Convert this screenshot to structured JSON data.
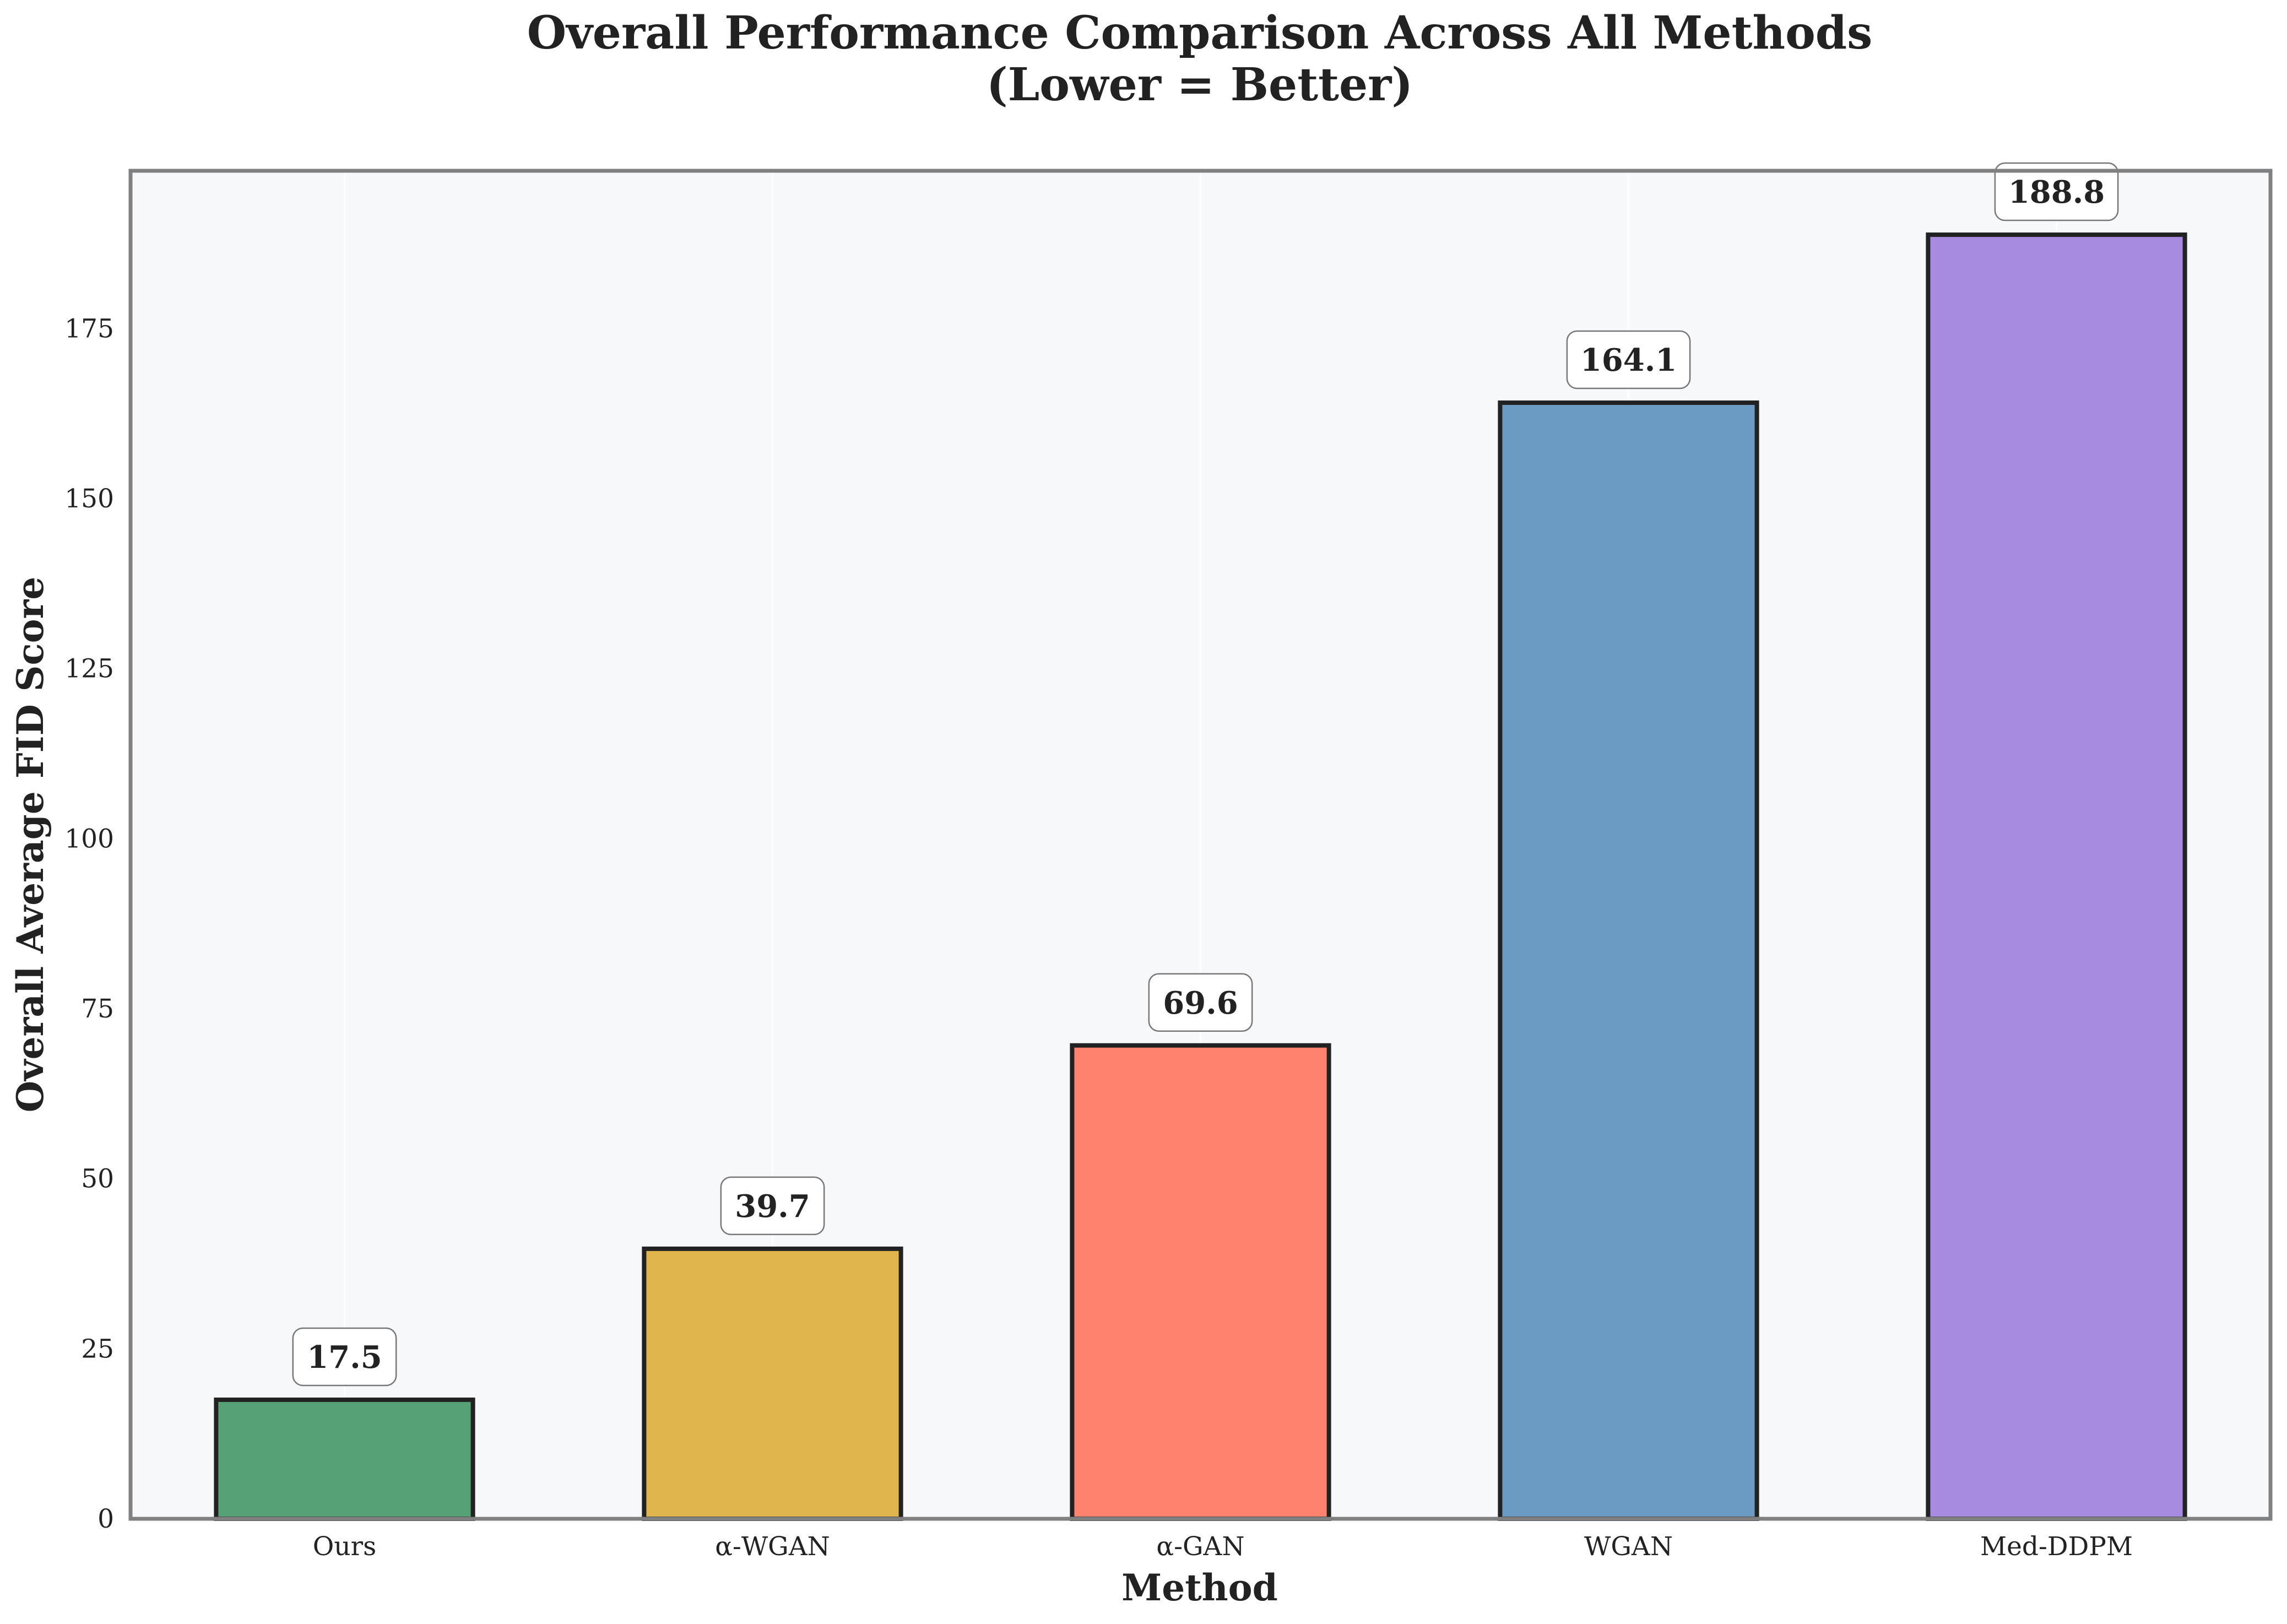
{
  "chart_data": {
    "type": "bar",
    "title": "Overall Performance Comparison Across All Methods",
    "subtitle": "(Lower = Better)",
    "xlabel": "Method",
    "ylabel": "Overall Average FID Score",
    "categories": [
      "Ours",
      "α-WGAN",
      "α-GAN",
      "WGAN",
      "Med-DDPM"
    ],
    "values": [
      17.5,
      39.7,
      69.6,
      164.1,
      188.8
    ],
    "value_labels": [
      "17.5",
      "39.7",
      "69.6",
      "164.1",
      "188.8"
    ],
    "colors": [
      "#56a176",
      "#e0b54d",
      "#ff826f",
      "#6b9ac3",
      "#a78be0"
    ],
    "ylim": [
      0,
      198.2
    ],
    "yticks": [
      0,
      25,
      50,
      75,
      100,
      125,
      150,
      175
    ],
    "grid": "vertical",
    "legend": "none",
    "plot_background": "#f7f8fa",
    "frame_color": "#808080",
    "bar_edge_color": "#222222"
  }
}
